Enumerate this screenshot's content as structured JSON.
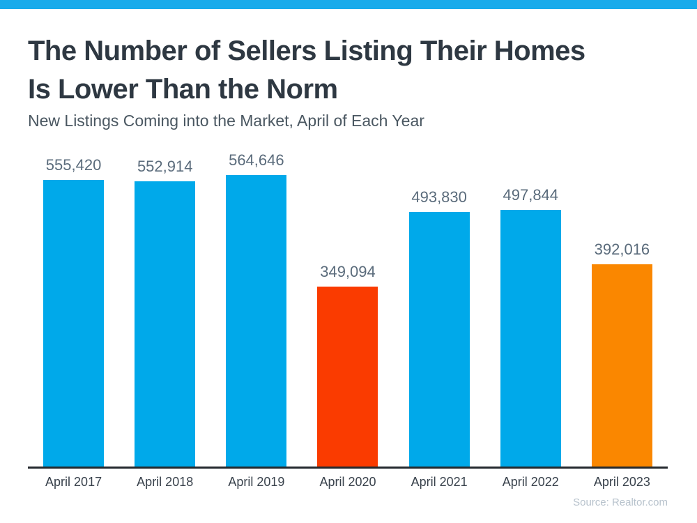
{
  "colors": {
    "brand_strip": "#19ABEB",
    "bar_blue": "#00A9EA",
    "bar_red": "#FA3B00",
    "bar_orange": "#FA8700",
    "title_text": "#2E3842",
    "subtitle_text": "#4A5761",
    "value_label_text": "#5A6B7B",
    "tick_label_text": "#39424C",
    "axis_line": "#24292E",
    "source_text": "#B7C2CC"
  },
  "header": {
    "title": "The Number of Sellers Listing Their Homes Is Lower Than the Norm",
    "title_lines": [
      "The Number of Sellers Listing Their Homes",
      "Is Lower Than the Norm"
    ],
    "subtitle": "New Listings Coming into the Market, April of Each Year"
  },
  "chart_data": {
    "type": "bar",
    "title": "The Number of Sellers Listing Their Homes Is Lower Than the Norm",
    "subtitle": "New Listings Coming into the Market, April of Each Year",
    "categories": [
      "April 2017",
      "April 2018",
      "April 2019",
      "April 2020",
      "April 2021",
      "April 2022",
      "April 2023"
    ],
    "values": [
      555420,
      552914,
      564646,
      349094,
      493830,
      497844,
      392016
    ],
    "value_labels": [
      "555,420",
      "552,914",
      "564,646",
      "349,094",
      "493,830",
      "497,844",
      "392,016"
    ],
    "bar_colors": [
      "#00A9EA",
      "#00A9EA",
      "#00A9EA",
      "#FA3B00",
      "#00A9EA",
      "#00A9EA",
      "#FA8700"
    ],
    "xlabel": "",
    "ylabel": "",
    "ylim": [
      0,
      600000
    ],
    "y_axis_visible": false,
    "grid": false,
    "legend": "none"
  },
  "footer": {
    "source": "Source: Realtor.com"
  }
}
